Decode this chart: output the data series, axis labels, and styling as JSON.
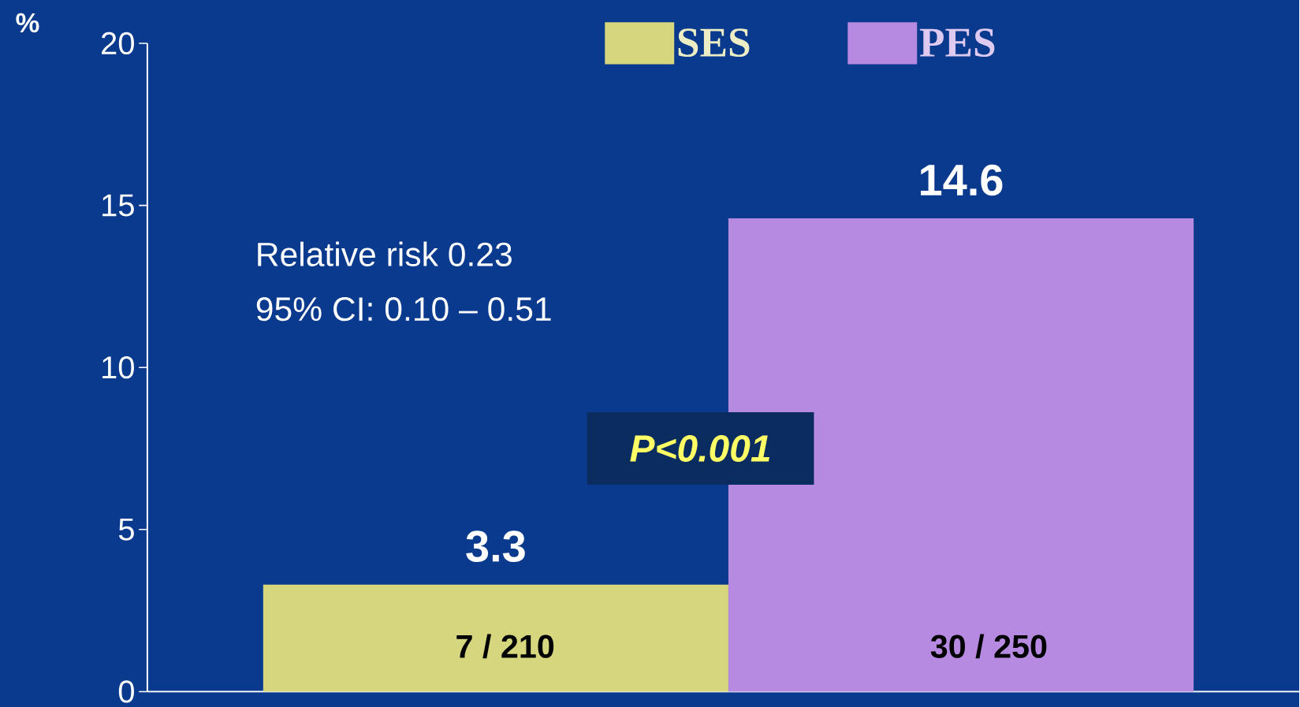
{
  "chart_data": {
    "type": "bar",
    "ylabel": "%",
    "categories": [
      null,
      null
    ],
    "series": [
      {
        "name": "SES",
        "color": "#d6d67e",
        "values": [
          3.3,
          null
        ]
      },
      {
        "name": "PES",
        "color": "#b68ae0",
        "values": [
          null,
          14.6
        ]
      }
    ],
    "ylim": [
      0,
      20
    ],
    "yticks": [
      0,
      5,
      10,
      15,
      20
    ],
    "grid": false,
    "legend": "top",
    "data_labels": true,
    "annotations": [
      "Relative risk 0.23",
      "95% CI: 0.10 – 0.51",
      "P<0.001",
      "7 / 210",
      "30 / 250"
    ]
  }
}
